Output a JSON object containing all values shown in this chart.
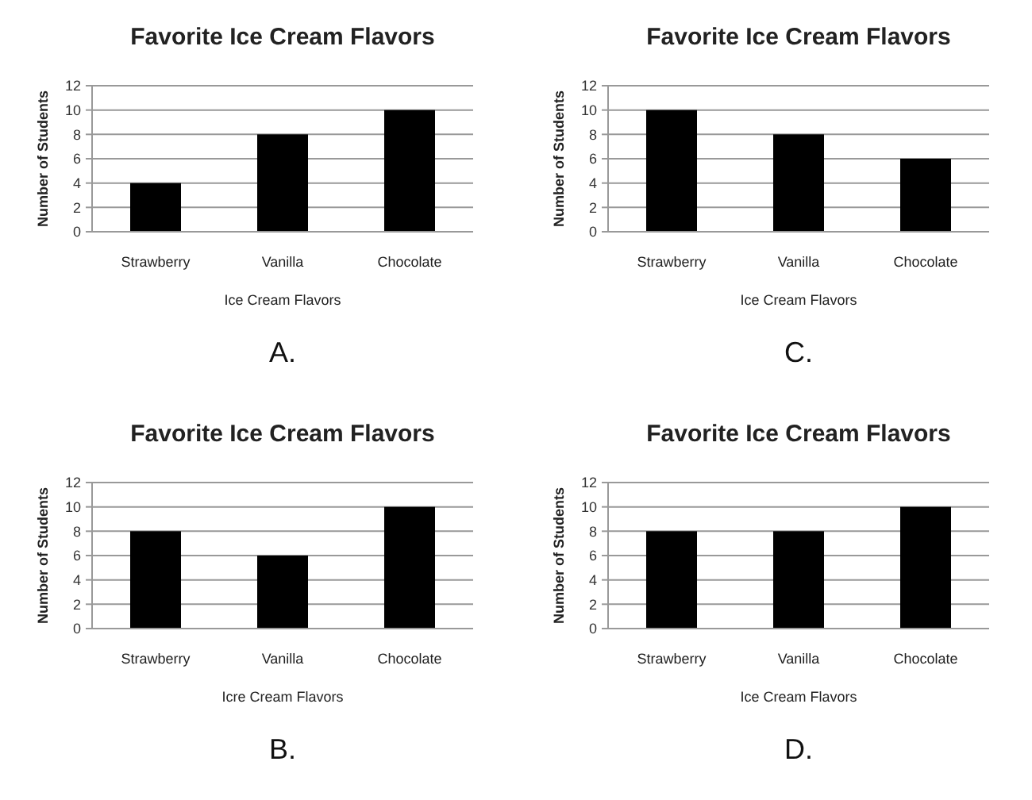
{
  "chart_data": [
    {
      "type": "bar",
      "title": "Favorite Ice Cream Flavors",
      "xlabel": "Ice Cream Flavors",
      "ylabel": "Number of Students",
      "categories": [
        "Strawberry",
        "Vanilla",
        "Chocolate"
      ],
      "values": [
        4,
        8,
        10
      ],
      "color": "#000000",
      "ylim": [
        0,
        12
      ],
      "yticks": [
        0,
        2,
        4,
        6,
        8,
        10,
        12
      ],
      "grid": "y",
      "annotations": [
        "A."
      ]
    },
    {
      "type": "bar",
      "title": "Favorite Ice Cream Flavors",
      "xlabel": "Ice Cream Flavors",
      "ylabel": "Number of Students",
      "categories": [
        "Strawberry",
        "Vanilla",
        "Chocolate"
      ],
      "values": [
        10,
        8,
        6
      ],
      "color": "#000000",
      "ylim": [
        0,
        12
      ],
      "yticks": [
        0,
        2,
        4,
        6,
        8,
        10,
        12
      ],
      "grid": "y",
      "annotations": [
        "C."
      ]
    },
    {
      "type": "bar",
      "title": "Favorite Ice Cream Flavors",
      "xlabel": "Icre Cream Flavors",
      "ylabel": "Number of Students",
      "categories": [
        "Strawberry",
        "Vanilla",
        "Chocolate"
      ],
      "values": [
        8,
        6,
        10
      ],
      "color": "#000000",
      "ylim": [
        0,
        12
      ],
      "yticks": [
        0,
        2,
        4,
        6,
        8,
        10,
        12
      ],
      "grid": "y",
      "annotations": [
        "B."
      ]
    },
    {
      "type": "bar",
      "title": "Favorite Ice Cream Flavors",
      "xlabel": "Ice Cream Flavors",
      "ylabel": "Number of Students",
      "categories": [
        "Strawberry",
        "Vanilla",
        "Chocolate"
      ],
      "values": [
        8,
        8,
        10
      ],
      "color": "#000000",
      "ylim": [
        0,
        12
      ],
      "yticks": [
        0,
        2,
        4,
        6,
        8,
        10,
        12
      ],
      "grid": "y",
      "annotations": [
        "D."
      ]
    }
  ]
}
